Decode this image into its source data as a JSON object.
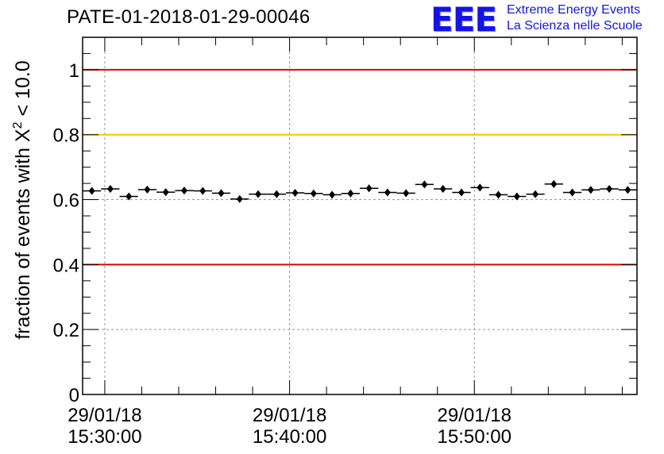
{
  "header": {
    "title": "PATE-01-2018-01-29-00046"
  },
  "logo": {
    "mark": "EEE",
    "line1": "Extreme Energy Events",
    "line2": "La Scienza nelle Scuole",
    "color": "#1414e6"
  },
  "chart_data": {
    "type": "scatter",
    "title": "PATE-01-2018-01-29-00046",
    "xlabel": "",
    "ylabel_prefix": "fraction of events with ",
    "ylabel_symbol": "X",
    "ylabel_sup": "2",
    "ylabel_suffix": " < 10.0",
    "ylim": [
      0,
      1.1
    ],
    "xlim_minutes": [
      -1.2,
      28.8
    ],
    "x_major_ticks": [
      {
        "minute": 0,
        "date": "29/01/18",
        "time": "15:30:00"
      },
      {
        "minute": 10,
        "date": "29/01/18",
        "time": "15:40:00"
      },
      {
        "minute": 20,
        "date": "29/01/18",
        "time": "15:50:00"
      }
    ],
    "x_minor_tick_minutes": [
      2,
      4,
      6,
      8,
      12,
      14,
      16,
      18,
      22,
      24,
      26,
      28
    ],
    "y_ticks": [
      {
        "value": 0,
        "label": "0"
      },
      {
        "value": 0.2,
        "label": "0.2"
      },
      {
        "value": 0.4,
        "label": "0.4"
      },
      {
        "value": 0.6,
        "label": "0.6"
      },
      {
        "value": 0.8,
        "label": "0.8"
      },
      {
        "value": 1,
        "label": "1"
      }
    ],
    "grid": true,
    "reference_lines": [
      {
        "value": 1.0,
        "color": "#e00000"
      },
      {
        "value": 0.8,
        "color": "#ffc000"
      },
      {
        "value": 0.4,
        "color": "#e00000"
      }
    ],
    "bin_width_minutes": 1,
    "x_minutes": [
      -0.7,
      0.3,
      1.3,
      2.3,
      3.3,
      4.3,
      5.3,
      6.3,
      7.3,
      8.3,
      9.3,
      10.3,
      11.3,
      12.3,
      13.3,
      14.3,
      15.3,
      16.3,
      17.3,
      18.3,
      19.3,
      20.3,
      21.3,
      22.3,
      23.3,
      24.3,
      25.3,
      26.3,
      27.3,
      28.3
    ],
    "y": [
      0.627,
      0.633,
      0.61,
      0.631,
      0.623,
      0.628,
      0.627,
      0.62,
      0.602,
      0.617,
      0.617,
      0.621,
      0.619,
      0.615,
      0.619,
      0.635,
      0.622,
      0.62,
      0.647,
      0.633,
      0.622,
      0.637,
      0.615,
      0.61,
      0.617,
      0.648,
      0.622,
      0.63,
      0.633,
      0.63
    ],
    "y_err": [
      0.007,
      0.007,
      0.007,
      0.007,
      0.007,
      0.007,
      0.007,
      0.007,
      0.007,
      0.007,
      0.007,
      0.007,
      0.007,
      0.007,
      0.007,
      0.007,
      0.007,
      0.007,
      0.007,
      0.007,
      0.007,
      0.007,
      0.007,
      0.007,
      0.007,
      0.007,
      0.007,
      0.007,
      0.007,
      0.007
    ],
    "marker_color": "#000000"
  }
}
